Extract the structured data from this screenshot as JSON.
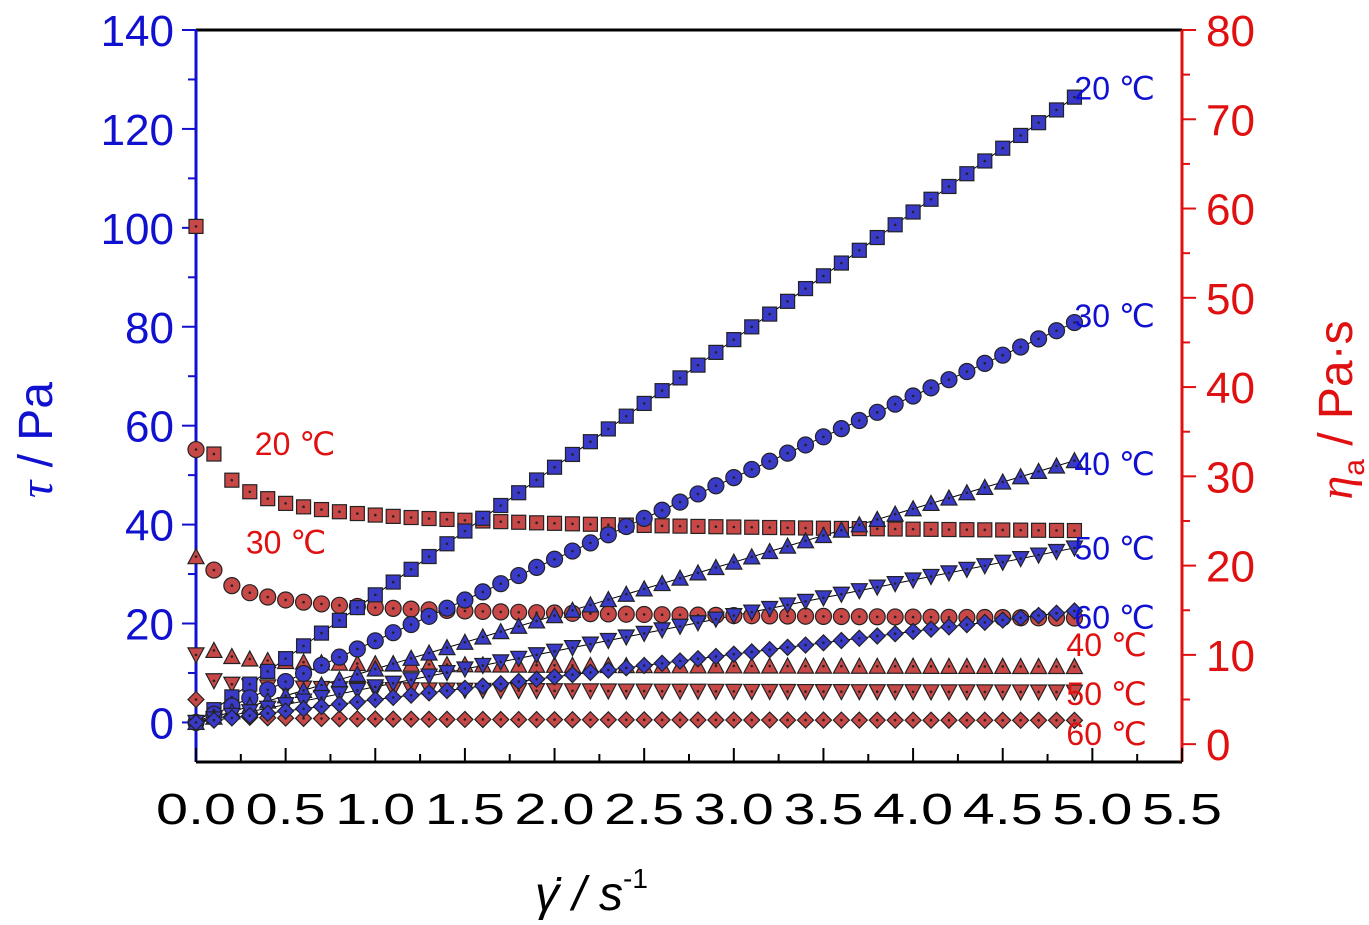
{
  "chart_data": {
    "type": "scatter",
    "x_axis": {
      "label": "γ̇ / s",
      "label_superscript": "-1",
      "range": [
        0,
        5.5
      ],
      "ticks": [
        "0.0",
        "0.5",
        "1.0",
        "1.5",
        "2.0",
        "2.5",
        "3.0",
        "3.5",
        "4.0",
        "4.5",
        "5.0",
        "5.5"
      ]
    },
    "y_left_axis": {
      "label_symbol": "τ",
      "label_unit": " / Pa",
      "range": [
        -8,
        140
      ],
      "ticks": [
        "0",
        "20",
        "40",
        "60",
        "80",
        "100",
        "120",
        "140"
      ],
      "color": "#1010d0"
    },
    "y_right_axis": {
      "label_symbol": "η",
      "label_subscript": "a",
      "label_unit": " / Pa·s",
      "range": [
        -2,
        80
      ],
      "ticks": [
        "0",
        "10",
        "20",
        "30",
        "40",
        "50",
        "60",
        "70",
        "80"
      ],
      "color": "#e01010"
    },
    "x_values": [
      0.0,
      0.1,
      0.2,
      0.3,
      0.4,
      0.5,
      0.6,
      0.7,
      0.8,
      0.9,
      1.0,
      1.1,
      1.2,
      1.3,
      1.4,
      1.5,
      1.6,
      1.7,
      1.8,
      1.9,
      2.0,
      2.1,
      2.2,
      2.3,
      2.4,
      2.5,
      2.6,
      2.7,
      2.8,
      2.9,
      3.0,
      3.1,
      3.2,
      3.3,
      3.4,
      3.5,
      3.6,
      3.7,
      3.8,
      3.9,
      4.0,
      4.1,
      4.2,
      4.3,
      4.4,
      4.5,
      4.6,
      4.7,
      4.8,
      4.9
    ],
    "shear_stress_series": [
      {
        "name": "20 ℃",
        "marker": "square",
        "axis": "left",
        "model": {
          "a": 0.0,
          "b": 25.8,
          "n": 1.0
        },
        "label_pos": [
          4.9,
          128
        ]
      },
      {
        "name": "30 ℃",
        "marker": "circle",
        "axis": "left",
        "model": {
          "a": 0.0,
          "b": 16.5,
          "n": 1.0
        },
        "label_pos": [
          4.9,
          82
        ]
      },
      {
        "name": "40 ℃",
        "marker": "triangle-up",
        "axis": "left",
        "model": {
          "a": 0.0,
          "b": 10.8,
          "n": 1.0
        },
        "label_pos": [
          4.9,
          52
        ]
      },
      {
        "name": "50 ℃",
        "marker": "triangle-down",
        "axis": "left",
        "model": {
          "a": 0.0,
          "b": 7.2,
          "n": 1.0
        },
        "label_pos": [
          4.9,
          35
        ]
      },
      {
        "name": "60 ℃",
        "marker": "diamond",
        "axis": "left",
        "model": {
          "a": 0.0,
          "b": 4.6,
          "n": 1.0
        },
        "label_pos": [
          4.9,
          21
        ]
      }
    ],
    "viscosity_series": [
      {
        "name": "20 ℃",
        "marker": "square",
        "axis": "right",
        "first": 58,
        "curve": {
          "p": 22.5,
          "q": 10.0,
          "n": 0.5
        },
        "label_pos": [
          0.3,
          33.5
        ]
      },
      {
        "name": "30 ℃",
        "marker": "circle",
        "axis": "right",
        "first": 33,
        "curve": {
          "p": 13.0,
          "q": 6.5,
          "n": 0.45
        },
        "label_pos": [
          0.25,
          22.5
        ]
      },
      {
        "name": "40 ℃",
        "marker": "triangle-up",
        "axis": "right",
        "first": 21,
        "curve": {
          "p": 8.5,
          "q": 2.0,
          "n": 0.6
        },
        "label_pos": [
          4.9,
          11
        ]
      },
      {
        "name": "50 ℃",
        "marker": "triangle-down",
        "axis": "right",
        "first": 10,
        "curve": {
          "p": 5.5,
          "q": 1.6,
          "n": 0.4
        },
        "label_pos": [
          4.9,
          5.5
        ]
      },
      {
        "name": "60 ℃",
        "marker": "diamond",
        "axis": "right",
        "first": 5,
        "curve": {
          "p": 2.5,
          "q": 0.8,
          "n": 0.4
        },
        "label_pos": [
          4.9,
          1
        ]
      }
    ],
    "blue_color": "#3a3ac8",
    "red_color": "#c84848",
    "grid": false
  }
}
